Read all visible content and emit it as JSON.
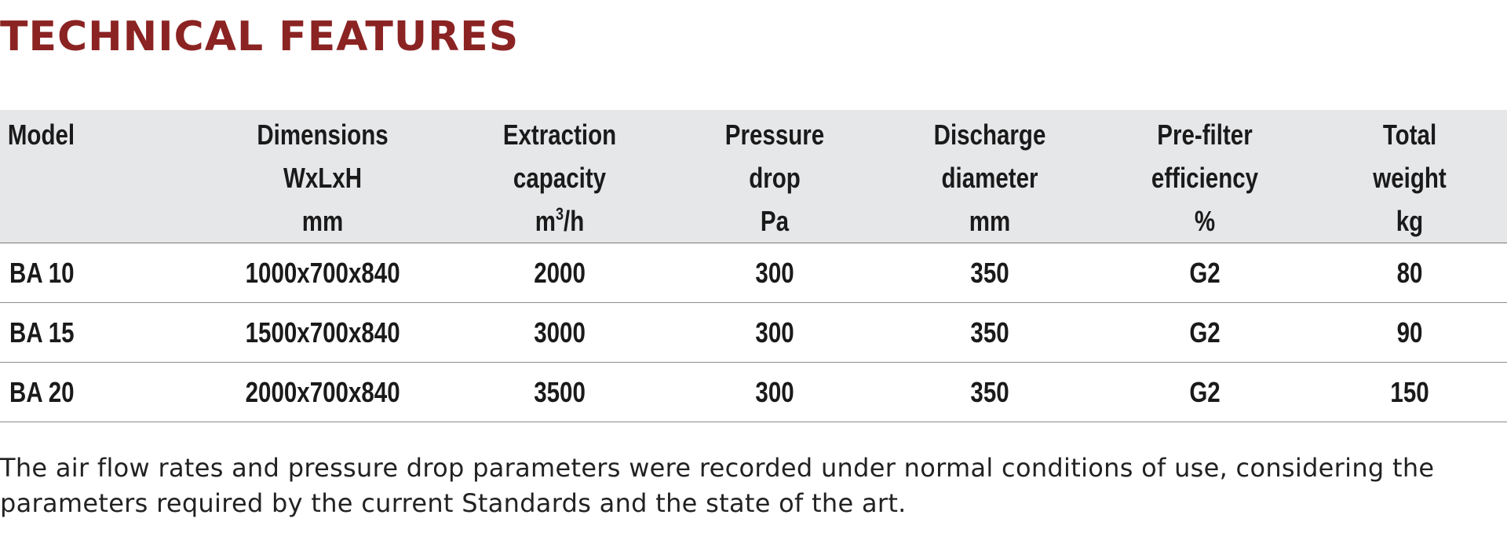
{
  "title": "TECHNICAL FEATURES",
  "table": {
    "headers": [
      {
        "lines": [
          "Model"
        ]
      },
      {
        "lines": [
          "Dimensions",
          "WxLxH",
          "mm"
        ]
      },
      {
        "lines": [
          "Extraction",
          "capacity"
        ],
        "unit_base": "m",
        "unit_sup": "3",
        "unit_rest": "/h"
      },
      {
        "lines": [
          "Pressure",
          "drop",
          "Pa"
        ]
      },
      {
        "lines": [
          "Discharge",
          "diameter",
          "mm"
        ]
      },
      {
        "lines": [
          "Pre-filter",
          "efficiency",
          "%"
        ]
      },
      {
        "lines": [
          "Total",
          "weight",
          "kg"
        ]
      }
    ],
    "rows": [
      [
        "BA 10",
        "1000x700x840",
        "2000",
        "300",
        "350",
        "G2",
        "80"
      ],
      [
        "BA 15",
        "1500x700x840",
        "3000",
        "300",
        "350",
        "G2",
        "90"
      ],
      [
        "BA 20",
        "2000x700x840",
        "3500",
        "300",
        "350",
        "G2",
        "150"
      ]
    ]
  },
  "footnote": "The air flow rates and pressure drop parameters were recorded under normal conditions of use, considering the parameters required by the current Standards and the state of the art.",
  "colors": {
    "title": "#8b2323",
    "header_background": "#e6e7e9",
    "row_divider": "#8c8c8c"
  }
}
